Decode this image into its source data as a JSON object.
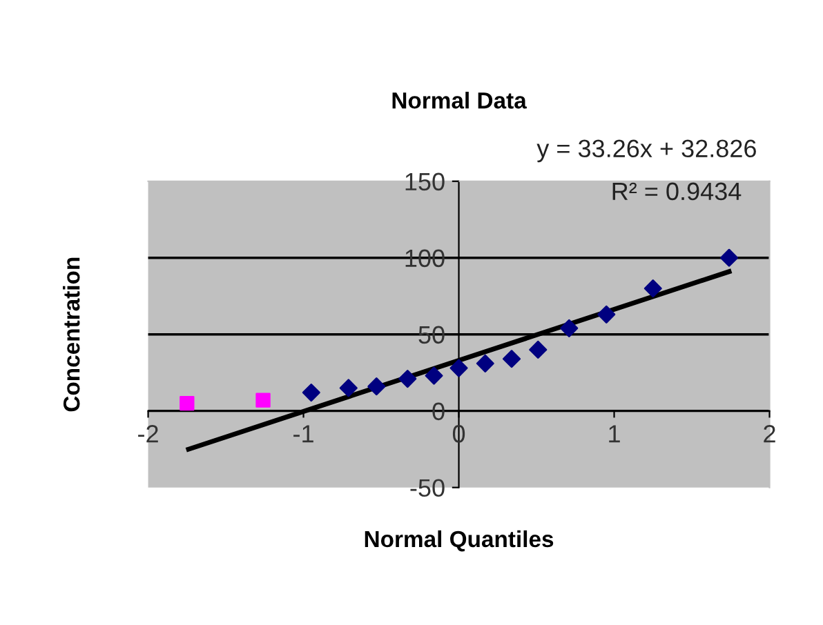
{
  "chart_data": {
    "type": "scatter",
    "title": "Normal Data",
    "xlabel": "Normal Quantiles",
    "ylabel": "Concentration",
    "annotations": [
      "y = 33.26x + 32.826",
      "R² = 0.9434"
    ],
    "series": [
      {
        "color": "#ff00ff",
        "marker": "square",
        "x": [
          -1.75,
          -1.26
        ],
        "values": [
          5,
          7
        ]
      },
      {
        "color": "#000080",
        "marker": "diamond",
        "x": [
          -0.95,
          -0.71,
          -0.53,
          -0.33,
          -0.16,
          0,
          0.17,
          0.34,
          0.51,
          0.71,
          0.95,
          1.25,
          1.74
        ],
        "values": [
          12,
          15,
          16,
          21,
          23,
          28,
          31,
          34,
          40,
          54,
          63,
          80,
          100
        ]
      },
      {
        "type": "line",
        "color": "#000000",
        "marker": "none",
        "x": [
          -1.74,
          1.74
        ],
        "values": [
          -25,
          91
        ]
      }
    ],
    "xlim": [
      -2,
      2
    ],
    "ylim": [
      -50,
      150
    ],
    "xticks": [
      -2,
      -1,
      0,
      1,
      2
    ],
    "yticks": [
      -50,
      0,
      50,
      100,
      150
    ],
    "grid": "y",
    "legend": false
  }
}
